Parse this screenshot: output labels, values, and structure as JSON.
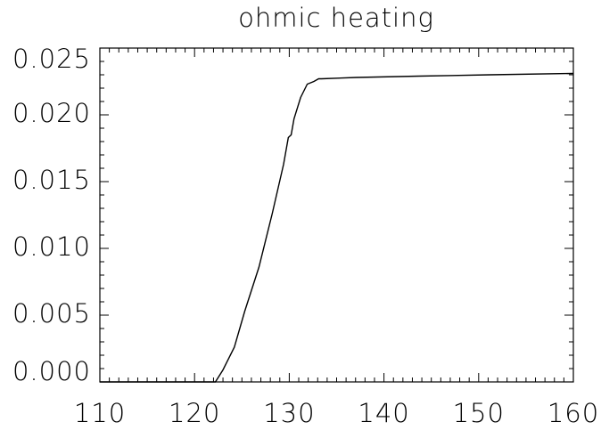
{
  "chart_data": {
    "type": "line",
    "title": "ohmic heating",
    "x": [
      110,
      122.2,
      123,
      124.2,
      125.3,
      126.8,
      128.2,
      129.4,
      129.9,
      130.2,
      130.5,
      131.2,
      131.9,
      132.6,
      133.1,
      133.4,
      137.1,
      143.7,
      151.2,
      160
    ],
    "series": [
      {
        "name": "ohmic heating",
        "color": "#000000",
        "values": [
          0,
          0,
          0.0009,
          0.0026,
          0.0053,
          0.0086,
          0.0126,
          0.0163,
          0.0183,
          0.0185,
          0.0197,
          0.0213,
          0.0223,
          0.0225,
          0.0227,
          0.0227,
          0.0228,
          0.0229,
          0.023,
          0.0231
        ]
      }
    ],
    "xlim": [
      110,
      160
    ],
    "xticks": [
      110,
      120,
      130,
      140,
      150,
      160
    ],
    "ylim": [
      0,
      0.025
    ],
    "yticks": [
      {
        "value": 0,
        "label": "0.000"
      },
      {
        "value": 0.005,
        "label": "0.005"
      },
      {
        "value": 0.01,
        "label": "0.010"
      },
      {
        "value": 0.015,
        "label": "0.015"
      },
      {
        "value": 0.02,
        "label": "0.020"
      },
      {
        "value": 0.025,
        "label": "0.025"
      }
    ],
    "grid": false
  }
}
